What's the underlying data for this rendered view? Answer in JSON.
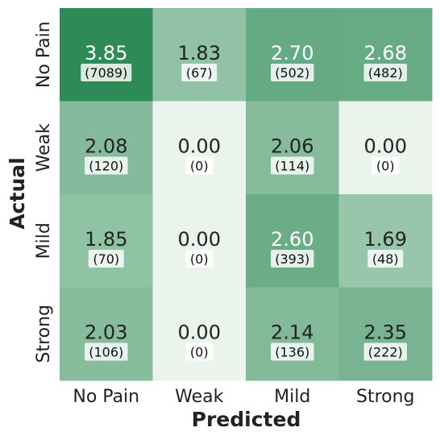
{
  "chart_data": {
    "type": "heatmap",
    "title": "",
    "xlabel": "Predicted",
    "ylabel": "Actual",
    "x_categories": [
      "No Pain",
      "Weak",
      "Mild",
      "Strong"
    ],
    "y_categories": [
      "No Pain",
      "Weak",
      "Mild",
      "Strong"
    ],
    "values": [
      [
        3.85,
        1.83,
        2.7,
        2.68
      ],
      [
        2.08,
        0.0,
        2.06,
        0.0
      ],
      [
        1.85,
        0.0,
        2.6,
        1.69
      ],
      [
        2.03,
        0.0,
        2.14,
        2.35
      ]
    ],
    "value_labels": [
      [
        "3.85",
        "1.83",
        "2.70",
        "2.68"
      ],
      [
        "2.08",
        "0.00",
        "2.06",
        "0.00"
      ],
      [
        "1.85",
        "0.00",
        "2.60",
        "1.69"
      ],
      [
        "2.03",
        "0.00",
        "2.14",
        "2.35"
      ]
    ],
    "count_labels": [
      [
        "(7089)",
        "(67)",
        "(502)",
        "(482)"
      ],
      [
        "(120)",
        "(0)",
        "(114)",
        "(0)"
      ],
      [
        "(70)",
        "(0)",
        "(393)",
        "(48)"
      ],
      [
        "(106)",
        "(0)",
        "(136)",
        "(222)"
      ]
    ],
    "color_range": [
      0,
      3.85
    ],
    "colormap": [
      "#ebf4ec",
      "#2e8b57"
    ],
    "grid": false,
    "colorbar": false
  }
}
